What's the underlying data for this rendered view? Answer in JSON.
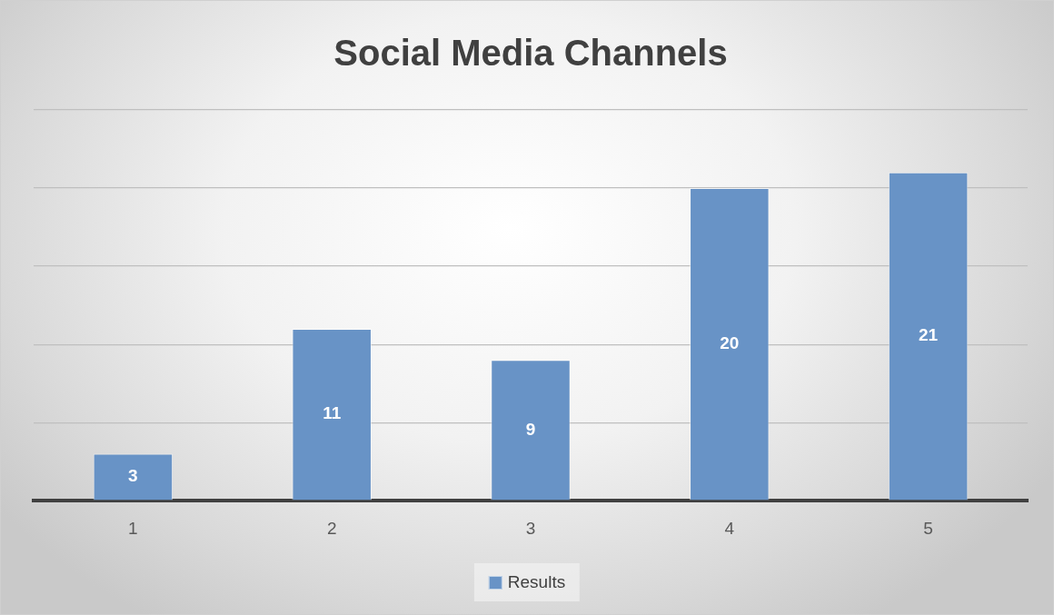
{
  "chart_data": {
    "type": "bar",
    "title": "Social Media Channels",
    "categories": [
      "1",
      "2",
      "3",
      "4",
      "5"
    ],
    "series": [
      {
        "name": "Results",
        "color": "#6893c6",
        "values": [
          3,
          11,
          9,
          20,
          21
        ]
      }
    ],
    "ylim": [
      0,
      25
    ],
    "yticks": [
      {
        "value": 0,
        "label": null
      },
      {
        "value": 5,
        "label": null
      },
      {
        "value": 10,
        "label": null
      },
      {
        "value": 15,
        "label": null
      },
      {
        "value": 20,
        "label": null
      },
      {
        "value": 25,
        "label": null
      }
    ],
    "grid": "y",
    "tick_labels": "x",
    "legend": "bottom",
    "data_labels": true
  }
}
